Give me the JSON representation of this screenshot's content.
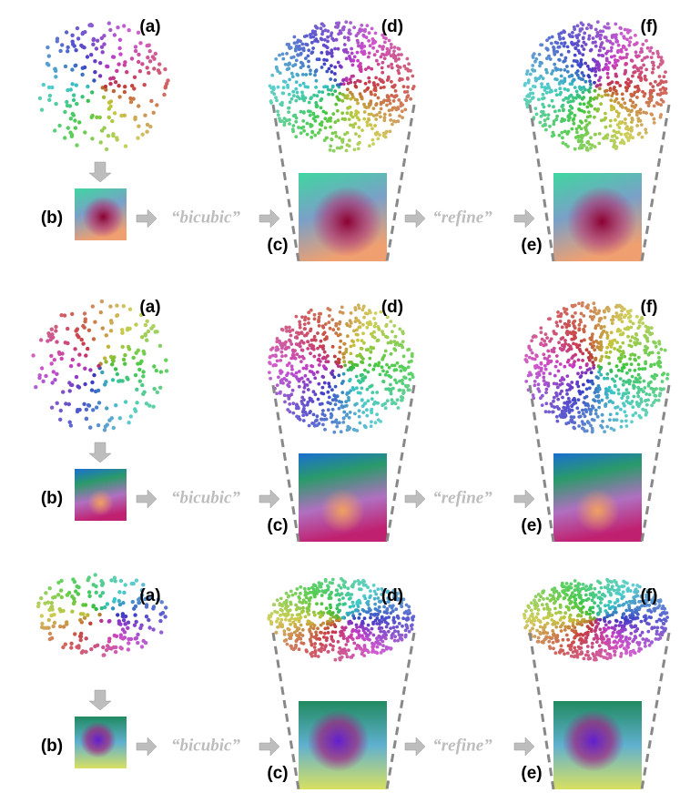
{
  "rows": [
    {
      "labels": {
        "a": "(a)",
        "b": "(b)",
        "c": "(c)",
        "d": "(d)",
        "e": "(e)",
        "f": "(f)"
      },
      "ops": [
        "“bicubic”",
        "“refine”"
      ]
    },
    {
      "labels": {
        "a": "(a)",
        "b": "(b)",
        "c": "(c)",
        "d": "(d)",
        "e": "(e)",
        "f": "(f)"
      },
      "ops": [
        "“bicubic”",
        "“refine”"
      ]
    },
    {
      "labels": {
        "a": "(a)",
        "b": "(b)",
        "c": "(c)",
        "d": "(d)",
        "e": "(e)",
        "f": "(f)"
      },
      "ops": [
        "“bicubic”",
        "“refine”"
      ]
    }
  ]
}
